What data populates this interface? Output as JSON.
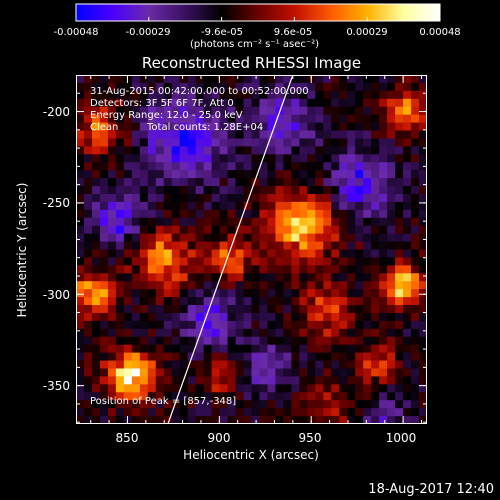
{
  "colorbar": {
    "tick_labels": [
      "-0.00048",
      "-0.00029",
      "-9.6e-05",
      "9.6e-05",
      "0.00029",
      "0.00048"
    ],
    "unit": "(photons cm⁻² s⁻¹ asec⁻²)",
    "range": [
      -0.00048,
      0.00048
    ],
    "colormap": [
      "#0000ff",
      "#4b00ff",
      "#6a2aa8",
      "#3a1060",
      "#000000",
      "#6a0000",
      "#c01000",
      "#ff5a00",
      "#ffb000",
      "#ffffa0",
      "#ffffff"
    ]
  },
  "annotations": {
    "time": "31-Aug-2015 00:42:00.000 to 00:52:00.000",
    "detectors": "Detectors: 3F 5F 6F 7F, Att 0",
    "energy": "Energy Range: 12.0 - 25.0 keV",
    "algorithm": "Clean",
    "counts": "Total counts: 1.28E+04",
    "peak": "Position of Peak = [857,-348]"
  },
  "footer": {
    "timestamp": "18-Aug-2017 12:40"
  },
  "chart_data": {
    "type": "heatmap",
    "title": "Reconstructed RHESSI Image",
    "xlabel": "Heliocentric X (arcsec)",
    "ylabel": "Heliocentric Y (arcsec)",
    "xlim": [
      822,
      1013
    ],
    "ylim": [
      -371,
      -180
    ],
    "xticks": [
      850,
      900,
      950,
      1000
    ],
    "yticks": [
      -200,
      -250,
      -300,
      -350
    ],
    "grid": false,
    "grid_shape": [
      44,
      44
    ],
    "peak": [
      857,
      -348
    ],
    "limb_line": [
      [
        872,
        -371
      ],
      [
        940,
        -180
      ]
    ],
    "hot_regions": [
      {
        "x": 852,
        "y": -345,
        "r": 14,
        "v": 1.0
      },
      {
        "x": 830,
        "y": -300,
        "r": 12,
        "v": 0.85
      },
      {
        "x": 870,
        "y": -282,
        "r": 16,
        "v": 0.7
      },
      {
        "x": 905,
        "y": -280,
        "r": 12,
        "v": 0.6
      },
      {
        "x": 945,
        "y": -262,
        "r": 20,
        "v": 0.85
      },
      {
        "x": 958,
        "y": -310,
        "r": 14,
        "v": 0.55
      },
      {
        "x": 1000,
        "y": -296,
        "r": 12,
        "v": 0.85
      },
      {
        "x": 1000,
        "y": -200,
        "r": 12,
        "v": 0.7
      },
      {
        "x": 835,
        "y": -210,
        "r": 14,
        "v": 0.55
      },
      {
        "x": 900,
        "y": -345,
        "r": 10,
        "v": 0.45
      },
      {
        "x": 960,
        "y": -360,
        "r": 12,
        "v": 0.4
      },
      {
        "x": 985,
        "y": -338,
        "r": 12,
        "v": 0.45
      }
    ],
    "cold_regions": [
      {
        "x": 880,
        "y": -215,
        "r": 22,
        "v": -0.6
      },
      {
        "x": 935,
        "y": -205,
        "r": 16,
        "v": -0.5
      },
      {
        "x": 975,
        "y": -240,
        "r": 18,
        "v": -0.55
      },
      {
        "x": 845,
        "y": -258,
        "r": 14,
        "v": -0.55
      },
      {
        "x": 895,
        "y": -315,
        "r": 14,
        "v": -0.5
      },
      {
        "x": 925,
        "y": -340,
        "r": 12,
        "v": -0.45
      },
      {
        "x": 990,
        "y": -365,
        "r": 10,
        "v": -0.4
      }
    ]
  }
}
